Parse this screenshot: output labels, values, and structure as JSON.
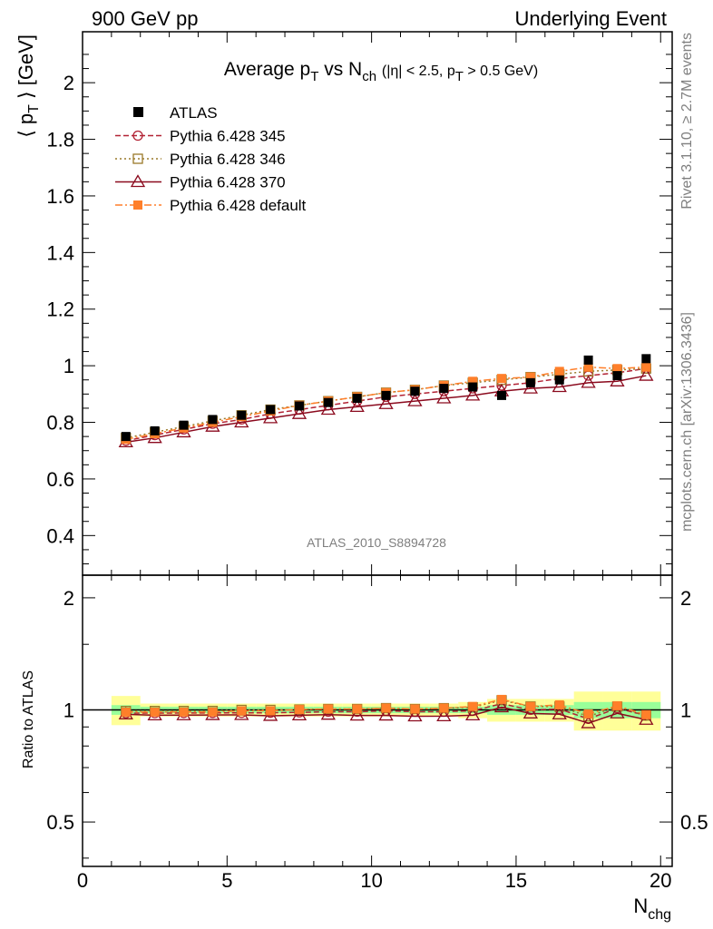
{
  "header": {
    "left": "900 GeV pp",
    "right": "Underlying Event"
  },
  "side": {
    "rivet": "Rivet 3.1.10, ≥ 2.7M events",
    "mcplots": "mcplots.cern.ch [arXiv:1306.3436]"
  },
  "chart_data": {
    "type": "scatter",
    "title": "Average p_T vs N_ch (|η| < 2.5, p_T > 0.5 GeV)",
    "analysis_label": "ATLAS_2010_S8894728",
    "xlabel": "N_chg",
    "ylabel": "⟨ p_T ⟩ [GeV]",
    "ratio_ylabel": "Ratio to ATLAS",
    "xlim": [
      0,
      20.4
    ],
    "ylim": [
      0.26,
      2.18
    ],
    "ratio_ylim": [
      0.38,
      2.3
    ],
    "ratio_log": true,
    "xticks": [
      "0",
      "5",
      "10",
      "15",
      "20"
    ],
    "yticks": [
      "0.4",
      "0.6",
      "0.8",
      "1",
      "1.2",
      "1.4",
      "1.6",
      "1.8",
      "2"
    ],
    "ratio_yticks": [
      "0.5",
      "1",
      "2"
    ],
    "legend_position": "top-left",
    "x": [
      1.5,
      2.5,
      3.5,
      4.5,
      5.5,
      6.5,
      7.5,
      8.5,
      9.5,
      10.5,
      11.5,
      12.5,
      13.5,
      14.5,
      15.5,
      16.5,
      17.5,
      18.5,
      19.5
    ],
    "series": [
      {
        "name": "ATLAS",
        "color": "#000000",
        "style": "data",
        "values": [
          0.75,
          0.77,
          0.79,
          0.81,
          0.825,
          0.845,
          0.858,
          0.87,
          0.885,
          0.895,
          0.91,
          0.92,
          0.925,
          0.895,
          0.94,
          0.95,
          1.02,
          0.965,
          1.025
        ],
        "band_green": [
          0.03,
          0.02,
          0.02,
          0.02,
          0.02,
          0.02,
          0.02,
          0.02,
          0.02,
          0.02,
          0.02,
          0.02,
          0.02,
          0.03,
          0.03,
          0.03,
          0.05,
          0.05,
          0.05
        ],
        "band_yellow": [
          0.09,
          0.04,
          0.04,
          0.04,
          0.04,
          0.04,
          0.04,
          0.04,
          0.04,
          0.04,
          0.04,
          0.04,
          0.05,
          0.07,
          0.07,
          0.07,
          0.12,
          0.12,
          0.12
        ]
      },
      {
        "name": "Pythia 6.428 345",
        "color": "#b22234",
        "style": "dashed",
        "marker": "circle",
        "values": [
          0.735,
          0.755,
          0.775,
          0.795,
          0.81,
          0.83,
          0.845,
          0.86,
          0.875,
          0.89,
          0.9,
          0.91,
          0.92,
          0.93,
          0.94,
          0.955,
          0.965,
          0.975,
          0.99
        ]
      },
      {
        "name": "Pythia 6.428 346",
        "color": "#9a7a2a",
        "style": "dotted",
        "marker": "square",
        "values": [
          0.745,
          0.765,
          0.785,
          0.805,
          0.825,
          0.845,
          0.86,
          0.875,
          0.89,
          0.905,
          0.915,
          0.93,
          0.94,
          0.95,
          0.96,
          0.97,
          0.98,
          0.985,
          0.99
        ]
      },
      {
        "name": "Pythia 6.428 370",
        "color": "#8b0a1e",
        "style": "solid",
        "marker": "triangle",
        "values": [
          0.73,
          0.745,
          0.765,
          0.785,
          0.8,
          0.815,
          0.83,
          0.845,
          0.855,
          0.865,
          0.875,
          0.885,
          0.895,
          0.91,
          0.92,
          0.925,
          0.94,
          0.945,
          0.965
        ]
      },
      {
        "name": "Pythia 6.428 default",
        "color": "#ff7f2a",
        "style": "dashdot",
        "marker": "filled-square",
        "values": [
          0.74,
          0.76,
          0.78,
          0.8,
          0.82,
          0.84,
          0.86,
          0.875,
          0.89,
          0.905,
          0.915,
          0.93,
          0.945,
          0.955,
          0.96,
          0.98,
          0.995,
          0.99,
          0.995
        ]
      }
    ]
  }
}
